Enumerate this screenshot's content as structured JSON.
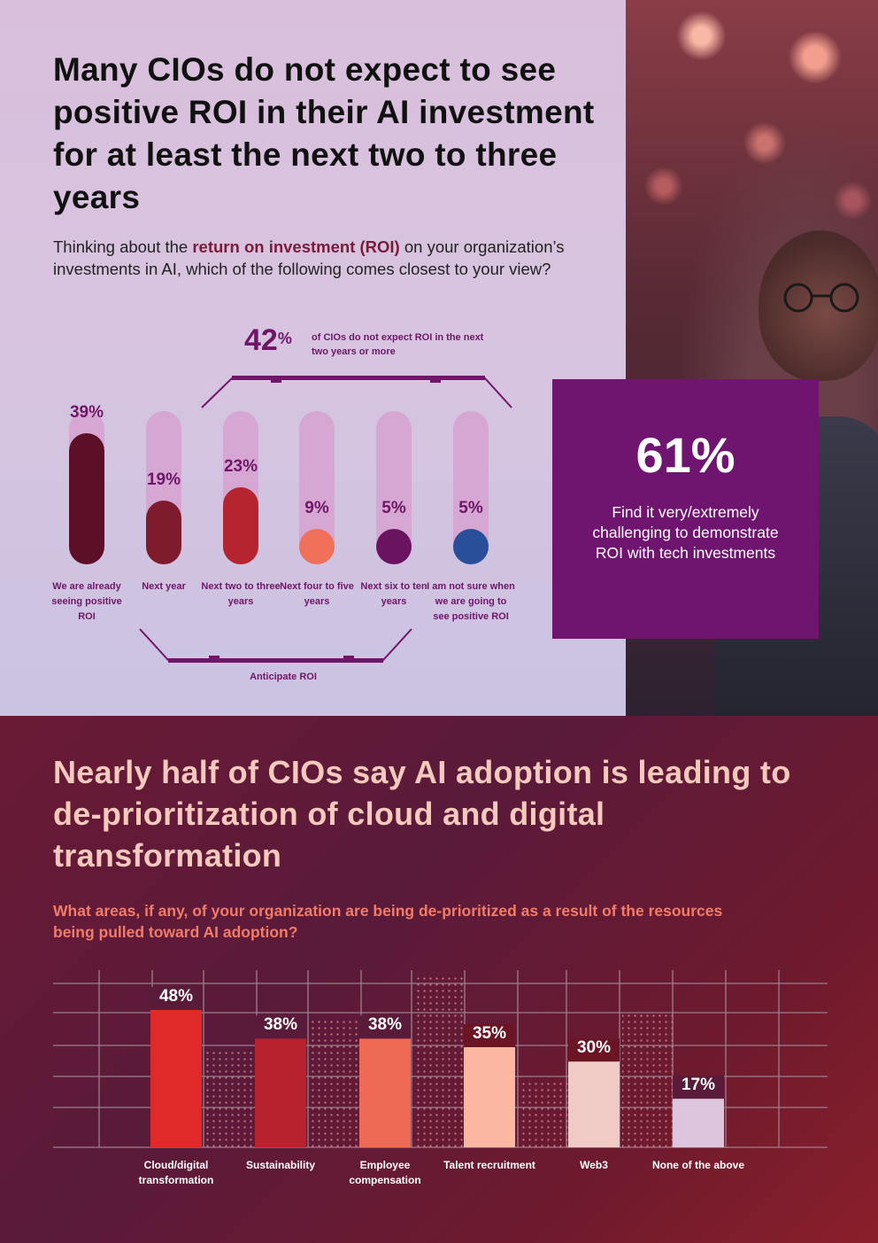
{
  "top_section": {
    "title": "Many CIOs do not expect to see positive ROI in their AI investment for at least the next two to three years",
    "question_part1": "Thinking about the ",
    "question_highlight": "return on investment (ROI)",
    "question_part2": " on your organization’s investments in AI, which of the following comes closest to your view?",
    "callout_42_value": "42",
    "callout_42_unit": "%",
    "callout_42_text": "of CIOs do not expect ROI in the next two years or more",
    "anticipate_label": "Anticipate ROI",
    "side_stat": {
      "value": "61%",
      "text": "Find it very/extremely challenging to demonstrate ROI with tech investments"
    }
  },
  "bottom_section": {
    "title": "Nearly half of CIOs say AI adoption is leading to de-prioritization of cloud and digital transformation",
    "question": "What areas, if any, of your organization are being de-prioritized as a result of the resources being pulled toward AI adoption?"
  },
  "colors": {
    "purple_text": "#6f1668",
    "callout_bg": "#6f1570",
    "title2_color": "#f6c9bd",
    "question2_color": "#f17c68"
  },
  "chart_data": [
    {
      "type": "bar",
      "title": "",
      "categories": [
        "We are already seeing positive ROI",
        "Next year",
        "Next two to three years",
        "Next four to five years",
        "Next six to ten years",
        "I am not sure when we are going to see positive ROI"
      ],
      "values": [
        39,
        19,
        23,
        9,
        5,
        5
      ],
      "value_labels": [
        "39%",
        "19%",
        "23%",
        "9%",
        "5%",
        "5%"
      ],
      "colors": [
        "#5c0f27",
        "#7e1c2d",
        "#b6242f",
        "#f0705a",
        "#6a1461",
        "#2a4f9a"
      ],
      "ylim": [
        0,
        100
      ],
      "grid": false
    },
    {
      "type": "bar",
      "title": "",
      "categories": [
        "Cloud/digital transformation",
        "Sustainability",
        "Employee compensation",
        "Talent recruitment",
        "Web3",
        "None of the above"
      ],
      "values": [
        48,
        38,
        38,
        35,
        30,
        17
      ],
      "value_labels": [
        "48%",
        "38%",
        "38%",
        "35%",
        "30%",
        "17%"
      ],
      "colors": [
        "#e02a27",
        "#b8222e",
        "#ef6a55",
        "#fbb7a2",
        "#f0cac4",
        "#dcc5dd"
      ],
      "ylim": [
        0,
        50
      ],
      "grid": true
    }
  ]
}
